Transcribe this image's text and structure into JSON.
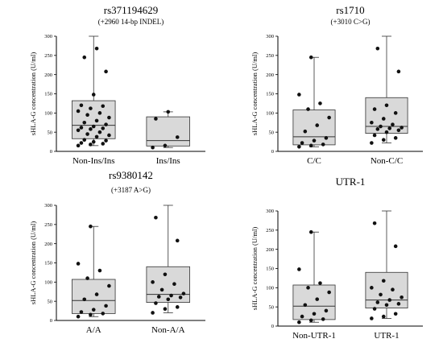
{
  "chart_data": [
    {
      "type": "box",
      "title": "rs371194629",
      "subtitle": "(+2960 14-bp INDEL)",
      "ylabel": "sHLA-G concentration (U/ml)",
      "ylim": [
        0,
        300
      ],
      "yticks": [
        0,
        50,
        100,
        150,
        200,
        250,
        300
      ],
      "categories": [
        "Non-Ins/Ins",
        "Ins/Ins"
      ],
      "boxes": [
        {
          "min": 15,
          "q1": 33,
          "median": 68,
          "q3": 132,
          "max": 300,
          "points": [
            15,
            18,
            20,
            22,
            25,
            28,
            30,
            38,
            42,
            45,
            50,
            55,
            58,
            60,
            62,
            65,
            70,
            75,
            80,
            88,
            95,
            100,
            105,
            112,
            118,
            120,
            148,
            208,
            245,
            268
          ]
        },
        {
          "min": 10,
          "q1": 14,
          "median": 28,
          "q3": 90,
          "max": 103,
          "points": [
            10,
            15,
            37,
            85,
            103
          ]
        }
      ]
    },
    {
      "type": "box",
      "title": "rs1710",
      "subtitle": "(+3010 C>G)",
      "ylabel": "sHLA-G concentration (U/ml)",
      "ylim": [
        0,
        300
      ],
      "yticks": [
        0,
        50,
        100,
        150,
        200,
        250,
        300
      ],
      "categories": [
        "C/C",
        "Non-C/C"
      ],
      "boxes": [
        {
          "min": 12,
          "q1": 17,
          "median": 38,
          "q3": 108,
          "max": 245,
          "points": [
            12,
            15,
            18,
            22,
            28,
            35,
            52,
            68,
            88,
            110,
            125,
            148,
            245
          ]
        },
        {
          "min": 22,
          "q1": 47,
          "median": 65,
          "q3": 140,
          "max": 300,
          "points": [
            22,
            30,
            35,
            42,
            50,
            55,
            58,
            60,
            62,
            65,
            70,
            75,
            85,
            100,
            110,
            120,
            208,
            268
          ]
        }
      ]
    },
    {
      "type": "box",
      "title": "rs9380142",
      "subtitle": "(+3187 A>G)",
      "ylabel": "sHLA-G concentration (U/ml)",
      "ylim": [
        0,
        300
      ],
      "yticks": [
        0,
        50,
        100,
        150,
        200,
        250,
        300
      ],
      "categories": [
        "A/A",
        "Non-A/A"
      ],
      "boxes": [
        {
          "min": 10,
          "q1": 18,
          "median": 52,
          "q3": 107,
          "max": 245,
          "points": [
            10,
            15,
            18,
            22,
            28,
            38,
            55,
            68,
            90,
            110,
            130,
            148,
            245
          ]
        },
        {
          "min": 20,
          "q1": 47,
          "median": 68,
          "q3": 140,
          "max": 300,
          "points": [
            20,
            30,
            35,
            45,
            55,
            60,
            62,
            65,
            70,
            80,
            95,
            100,
            120,
            208,
            268
          ]
        }
      ]
    },
    {
      "type": "box",
      "title": "UTR-1",
      "subtitle": "",
      "ylabel": "sHLA-G concentration (U/ml)",
      "ylim": [
        0,
        300
      ],
      "yticks": [
        0,
        50,
        100,
        150,
        200,
        250,
        300
      ],
      "categories": [
        "Non-UTR-1",
        "UTR-1"
      ],
      "boxes": [
        {
          "min": 10,
          "q1": 17,
          "median": 52,
          "q3": 107,
          "max": 245,
          "points": [
            10,
            15,
            18,
            25,
            32,
            40,
            55,
            70,
            88,
            100,
            112,
            148,
            245
          ]
        },
        {
          "min": 20,
          "q1": 47,
          "median": 68,
          "q3": 140,
          "max": 300,
          "points": [
            20,
            25,
            32,
            45,
            55,
            58,
            62,
            68,
            75,
            82,
            95,
            100,
            118,
            208,
            268
          ]
        }
      ]
    }
  ]
}
